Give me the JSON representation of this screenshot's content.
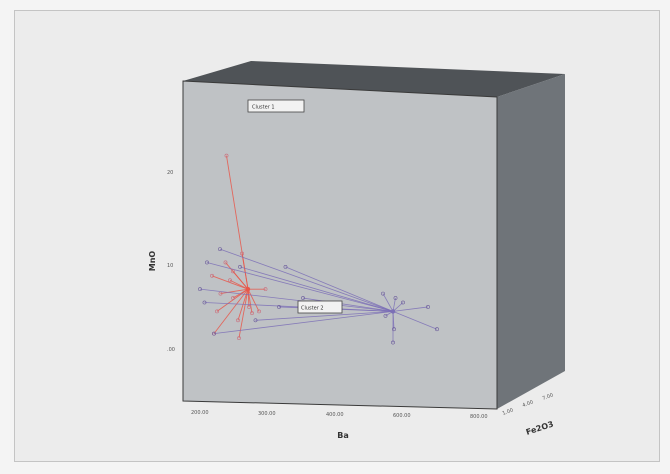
{
  "chart_data": {
    "type": "scatter",
    "subtype": "3d-centroid-star-plot",
    "xlabel": "Ba",
    "ylabel": "MnO",
    "zlabel": "Fe2O3",
    "x_ticks": [
      "200.00",
      "300.00",
      "400.00",
      "600.00",
      "800.00"
    ],
    "y_ticks": [
      "20",
      "10",
      ".00"
    ],
    "z_ticks": [
      "1.00",
      "4.00",
      "7.00"
    ],
    "colors": {
      "group_a": "#e8574a",
      "group_b": "#7b6fb6",
      "box_face": "#bfc2c5",
      "box_top": "#4f5357",
      "box_side": "#6f7479"
    },
    "groups": [
      {
        "name": "",
        "color": "#e8574a",
        "centroid": [
          330,
          6.5
        ],
        "points": [
          [
            287,
            21.5
          ],
          [
            258,
            8.0
          ],
          [
            285,
            9.5
          ],
          [
            300,
            8.5
          ],
          [
            318,
            10.5
          ],
          [
            300,
            5.5
          ],
          [
            268,
            4.0
          ],
          [
            338,
            3.8
          ],
          [
            262,
            1.5
          ],
          [
            312,
            1.0
          ],
          [
            365,
            6.5
          ],
          [
            275,
            6.0
          ],
          [
            332,
            4.5
          ],
          [
            352,
            4.0
          ],
          [
            294,
            7.5
          ],
          [
            310,
            3.0
          ]
        ]
      },
      {
        "name": "",
        "color": "#7b6fb6",
        "centroid": [
          620,
          4.0
        ],
        "points": [
          [
            600,
            6.0
          ],
          [
            625,
            5.5
          ],
          [
            640,
            5.0
          ],
          [
            605,
            3.5
          ],
          [
            622,
            2.0
          ],
          [
            620,
            0.5
          ],
          [
            690,
            4.5
          ],
          [
            708,
            2.0
          ],
          [
            440,
            5.5
          ],
          [
            243,
            5.0
          ],
          [
            248,
            9.5
          ],
          [
            234,
            6.5
          ],
          [
            274,
            11.0
          ],
          [
            262,
            1.5
          ],
          [
            314,
            9.0
          ],
          [
            405,
            9.0
          ],
          [
            392,
            4.5
          ],
          [
            345,
            3.0
          ]
        ]
      }
    ],
    "annotations": [
      "Cluster 1",
      "Cluster 2"
    ]
  }
}
